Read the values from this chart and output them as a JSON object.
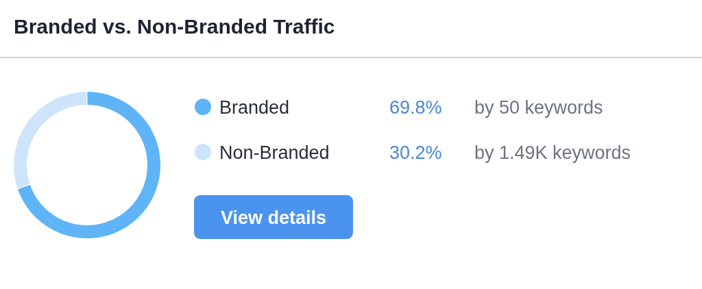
{
  "chart_data": {
    "type": "donut",
    "title": "Branded vs. Non-Branded Traffic",
    "categories": [
      "Branded",
      "Non-Branded"
    ],
    "values": [
      69.8,
      30.2
    ],
    "colors": [
      "#5eb4f7",
      "#cde4fb"
    ],
    "value_labels": [
      "69.8%",
      "30.2%"
    ],
    "legend": "right",
    "annotations": [
      "by 50 keywords",
      "by 1.49K keywords",
      "View details"
    ]
  }
}
